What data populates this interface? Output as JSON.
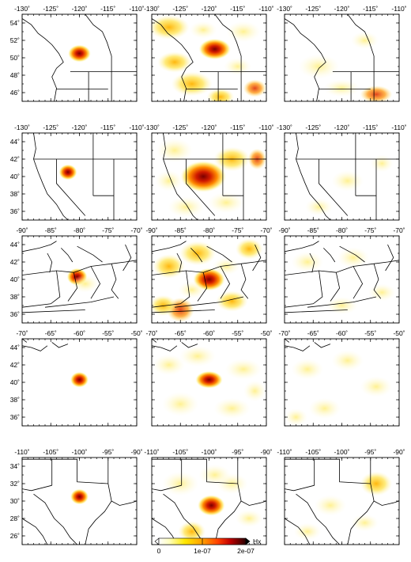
{
  "map_rows": [
    {
      "region": "pacific-northwest",
      "lon_labels": [
        "-130˚",
        "-125˚",
        "-120˚",
        "-115˚",
        "-110˚"
      ],
      "lat_labels": [
        "54˚",
        "52˚",
        "50˚",
        "48˚",
        "46˚"
      ]
    },
    {
      "region": "great-basin",
      "lon_labels": [
        "-130˚",
        "-125˚",
        "-120˚",
        "-115˚",
        "-110˚"
      ],
      "lat_labels": [
        "44˚",
        "42˚",
        "40˚",
        "38˚",
        "36˚"
      ]
    },
    {
      "region": "eastern-us",
      "lon_labels": [
        "-90˚",
        "-85˚",
        "-80˚",
        "-75˚",
        "-70˚"
      ],
      "lat_labels": [
        "44˚",
        "42˚",
        "40˚",
        "38˚",
        "36˚"
      ]
    },
    {
      "region": "north-atlantic",
      "lon_labels": [
        "-70˚",
        "-65˚",
        "-60˚",
        "-55˚",
        "-50˚"
      ],
      "lat_labels": [
        "44˚",
        "42˚",
        "40˚",
        "38˚",
        "36˚"
      ]
    },
    {
      "region": "south-central-us",
      "lon_labels": [
        "-110˚",
        "-105˚",
        "-100˚",
        "-95˚",
        "-90˚"
      ],
      "lat_labels": [
        "34˚",
        "32˚",
        "30˚",
        "28˚",
        "26˚"
      ]
    }
  ],
  "colorbar": {
    "tick_labels": [
      "0",
      "1e-07",
      "2e-07"
    ],
    "unit_label": "Hx",
    "colors": [
      "#ffffff",
      "#ffffb3",
      "#ffea00",
      "#ffb300",
      "#ff6a00",
      "#d11a00",
      "#8a0000",
      "#3a0000"
    ]
  },
  "colors": {
    "frame": "#000000",
    "hot": "#c8001a",
    "warm": "#ffd000",
    "pale": "#fff7b0"
  }
}
